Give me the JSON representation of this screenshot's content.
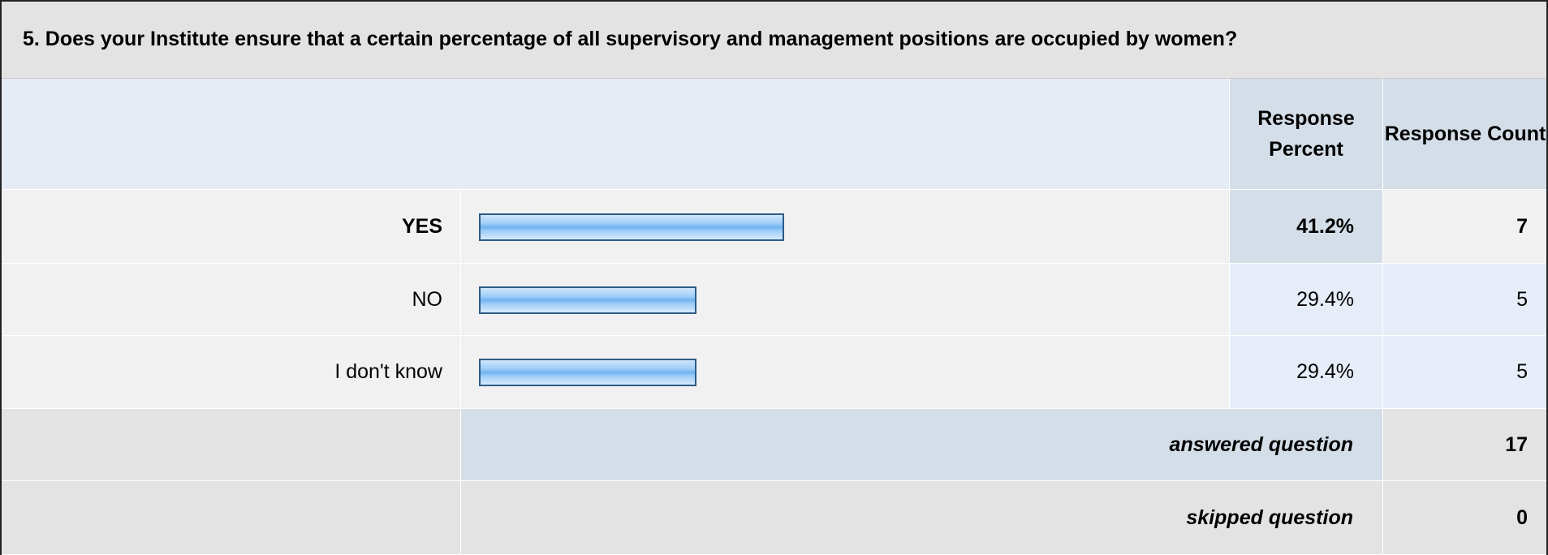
{
  "question": "5. Does your Institute ensure that a certain percentage of all supervisory and management positions are occupied by women?",
  "headers": {
    "percent": "Response Percent",
    "count": "Response Count"
  },
  "rows": [
    {
      "label": "YES",
      "percent": 41.2,
      "percent_label": "41.2%",
      "count": 7
    },
    {
      "label": "NO",
      "percent": 29.4,
      "percent_label": "29.4%",
      "count": 5
    },
    {
      "label": "I don't know",
      "percent": 29.4,
      "percent_label": "29.4%",
      "count": 5
    }
  ],
  "summary": [
    {
      "label": "answered question",
      "count": 17
    },
    {
      "label": "skipped question",
      "count": 0
    }
  ]
}
